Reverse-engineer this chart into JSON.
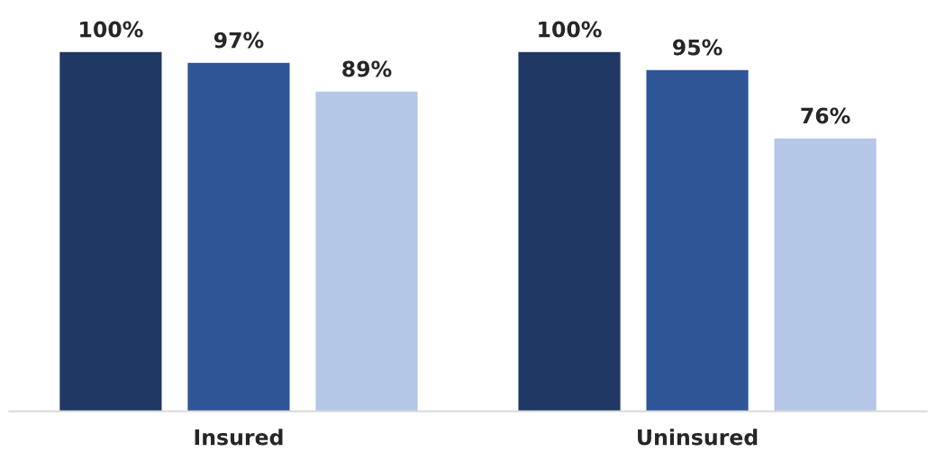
{
  "chart_data": {
    "type": "bar",
    "categories": [
      "Insured",
      "Uninsured"
    ],
    "series": [
      {
        "color": "#203864",
        "values": [
          100,
          100
        ],
        "value_labels": [
          "100%",
          "100%"
        ]
      },
      {
        "color": "#2f5597",
        "values": [
          97,
          95
        ],
        "value_labels": [
          "97%",
          "95%"
        ]
      },
      {
        "color": "#b4c7e7",
        "values": [
          89,
          76
        ],
        "value_labels": [
          "89%",
          "76%"
        ]
      }
    ],
    "tick_labels": "x",
    "grid": false,
    "legend": false
  }
}
